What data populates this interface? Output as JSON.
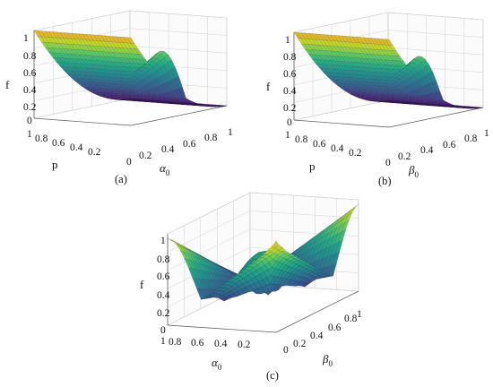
{
  "chart_data": [
    {
      "type": "surface",
      "caption": "(a)",
      "zlabel": "f",
      "ylabel": "p",
      "xlabel_base": "α",
      "xlabel_sub": "0",
      "z_ticks": [
        "0",
        "0.2",
        "0.4",
        "0.6",
        "0.8",
        "1"
      ],
      "y_ticks": [
        "1",
        "0.8",
        "0.6",
        "0.4",
        "0.2"
      ],
      "x_ticks": [
        "0",
        "0.2",
        "0.4",
        "0.6",
        "0.8",
        "1"
      ],
      "xlim": [
        0,
        1
      ],
      "ylim": [
        0,
        1
      ],
      "zlim": [
        0,
        1
      ],
      "grid": true,
      "colormap": "viridis"
    },
    {
      "type": "surface",
      "caption": "(b)",
      "zlabel": "f",
      "ylabel": "p",
      "xlabel_base": "β",
      "xlabel_sub": "0",
      "z_ticks": [
        "0",
        "0.2",
        "0.4",
        "0.6",
        "0.8",
        "1"
      ],
      "y_ticks": [
        "1",
        "0.8",
        "0.6",
        "0.4",
        "0.2"
      ],
      "x_ticks": [
        "0",
        "0.2",
        "0.4",
        "0.6",
        "0.8",
        "1"
      ],
      "xlim": [
        0,
        1
      ],
      "ylim": [
        0,
        1
      ],
      "zlim": [
        0,
        1
      ],
      "grid": true,
      "colormap": "viridis"
    },
    {
      "type": "surface",
      "caption": "(c)",
      "zlabel": "f",
      "ylabel_base": "α",
      "ylabel_sub": "0",
      "xlabel_base": "β",
      "xlabel_sub": "0",
      "z_ticks": [
        "0",
        "0.2",
        "0.4",
        "0.6",
        "0.8",
        "1"
      ],
      "y_ticks": [
        "1",
        "0.8",
        "0.6",
        "0.4",
        "0.2"
      ],
      "x_ticks": [
        "0",
        "0.2",
        "0.4",
        "0.6",
        "0.8",
        "1"
      ],
      "xlim": [
        0,
        1
      ],
      "ylim": [
        0,
        1
      ],
      "zlim": [
        0,
        1
      ],
      "grid": true,
      "colormap": "viridis"
    }
  ]
}
